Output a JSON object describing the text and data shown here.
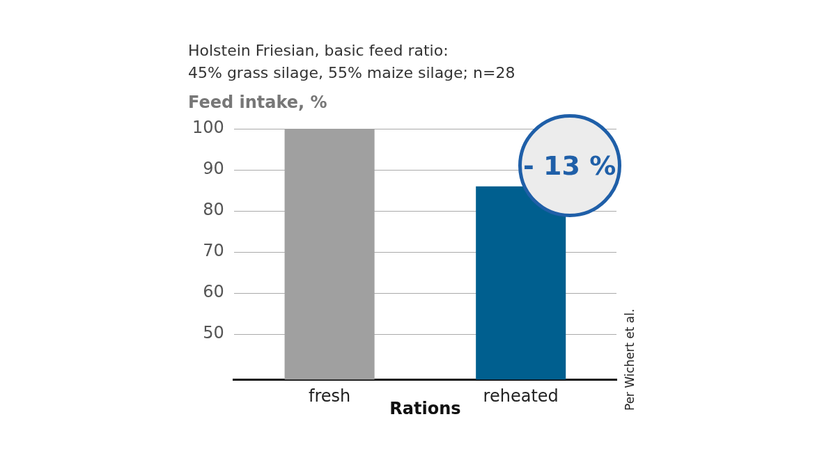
{
  "chart_data": {
    "type": "bar",
    "title": "Holstein Friesian, basic feed ratio:\n45% grass silage, 55% maize silage; n=28",
    "ylabel": "Feed intake, %",
    "xlabel": "Rations",
    "categories": [
      "fresh",
      "reheated"
    ],
    "values": [
      100,
      86
    ],
    "colors": [
      "#a0a0a0",
      "#005f8f"
    ],
    "ylim": [
      39,
      100
    ],
    "yticks": [
      50,
      60,
      70,
      80,
      90,
      100
    ],
    "grid": "y",
    "legend": false,
    "annotations": [
      {
        "text": "- 13 %",
        "x": "reheated",
        "y": 86
      },
      "Per Wichert et al."
    ]
  }
}
